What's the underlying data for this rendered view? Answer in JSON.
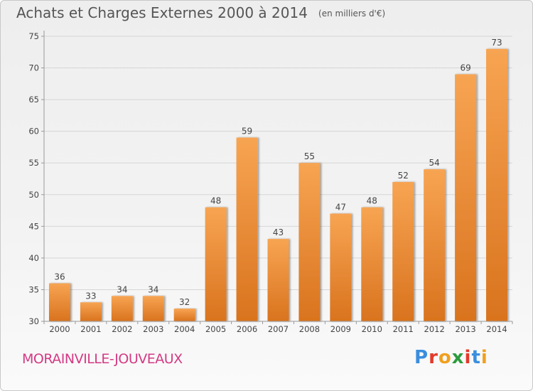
{
  "header": {
    "title": "Achats et Charges Externes 2000 à 2014",
    "subtitle": "(en milliers d'€)"
  },
  "footer": {
    "city": "MORAINVILLE-JOUVEAUX",
    "brand_letters": [
      "P",
      "r",
      "o",
      "x",
      "i",
      "t",
      "i"
    ],
    "brand_colors": [
      "#3a8ede",
      "#e23a2a",
      "#f0a020",
      "#2c9c3c",
      "#e23a2a",
      "#3a8ede",
      "#f0a020"
    ]
  },
  "chart_data": {
    "type": "bar",
    "categories": [
      "2000",
      "2001",
      "2002",
      "2003",
      "2004",
      "2005",
      "2006",
      "2007",
      "2008",
      "2009",
      "2010",
      "2011",
      "2012",
      "2013",
      "2014"
    ],
    "values": [
      36,
      33,
      34,
      34,
      32,
      48,
      59,
      43,
      55,
      47,
      48,
      52,
      54,
      69,
      73
    ],
    "ylim": [
      30,
      75
    ],
    "yticks": [
      30,
      35,
      40,
      45,
      50,
      55,
      60,
      65,
      70,
      75
    ],
    "grid": true,
    "bar_color_top": "#f7a452",
    "bar_color_bottom": "#d9731e"
  }
}
